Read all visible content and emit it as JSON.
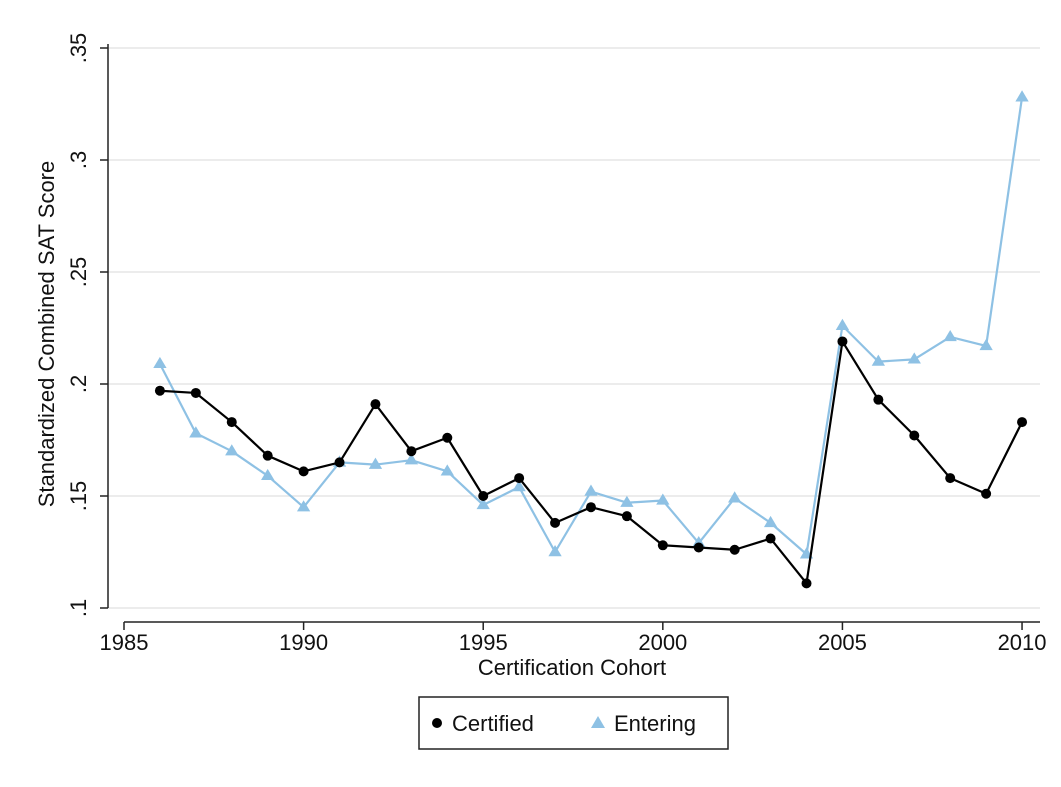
{
  "chart_data": {
    "type": "line",
    "title": "",
    "xlabel": "Certification Cohort",
    "ylabel": "Standardized Combined SAT Score",
    "xlim": [
      1985,
      2010.5
    ],
    "ylim": [
      0.1,
      0.35
    ],
    "x_ticks": [
      1985,
      1990,
      1995,
      2000,
      2005,
      2010
    ],
    "x_tick_labels": [
      "1985",
      "1990",
      "1995",
      "2000",
      "2005",
      "2010"
    ],
    "y_ticks": [
      0.1,
      0.15,
      0.2,
      0.25,
      0.3,
      0.35
    ],
    "y_tick_labels": [
      ".1",
      ".15",
      ".2",
      ".25",
      ".3",
      ".35"
    ],
    "grid": true,
    "legend_position": "bottom",
    "x": [
      1986,
      1987,
      1988,
      1989,
      1990,
      1991,
      1992,
      1993,
      1994,
      1995,
      1996,
      1997,
      1998,
      1999,
      2000,
      2001,
      2002,
      2003,
      2004,
      2005,
      2006,
      2007,
      2008,
      2009,
      2010
    ],
    "series": [
      {
        "name": "Certified",
        "color": "#000000",
        "marker": "circle",
        "values": [
          0.197,
          0.196,
          0.183,
          0.168,
          0.161,
          0.165,
          0.191,
          0.17,
          0.176,
          0.15,
          0.158,
          0.138,
          0.145,
          0.141,
          0.128,
          0.127,
          0.126,
          0.131,
          0.111,
          0.219,
          0.193,
          0.177,
          0.158,
          0.151,
          0.183
        ]
      },
      {
        "name": "Entering",
        "color": "#8ec1e4",
        "marker": "triangle",
        "values": [
          0.209,
          0.178,
          0.17,
          0.159,
          0.145,
          0.165,
          0.164,
          0.166,
          0.161,
          0.146,
          0.154,
          0.125,
          0.152,
          0.147,
          0.148,
          0.129,
          0.149,
          0.138,
          0.124,
          0.226,
          0.21,
          0.211,
          0.221,
          0.217,
          0.328
        ]
      }
    ]
  }
}
